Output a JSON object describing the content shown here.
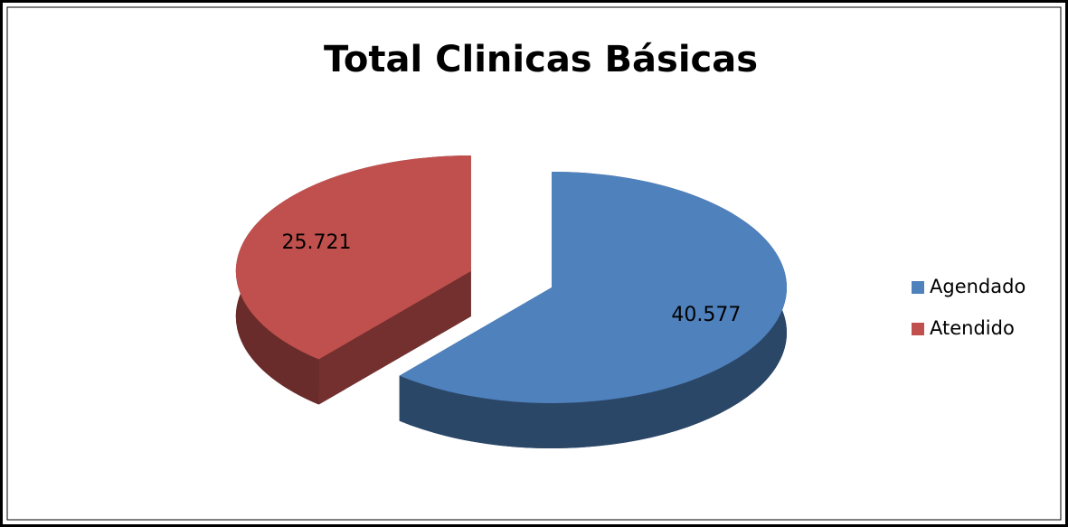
{
  "chart_data": {
    "type": "pie",
    "title": "Total Clinicas Básicas",
    "categories": [
      "Agendado",
      "Atendido"
    ],
    "values": [
      40577,
      25721
    ],
    "value_labels": [
      "40.577",
      "25.721"
    ],
    "colors": [
      "#4f81bd",
      "#c0504d"
    ],
    "legend": "right"
  }
}
